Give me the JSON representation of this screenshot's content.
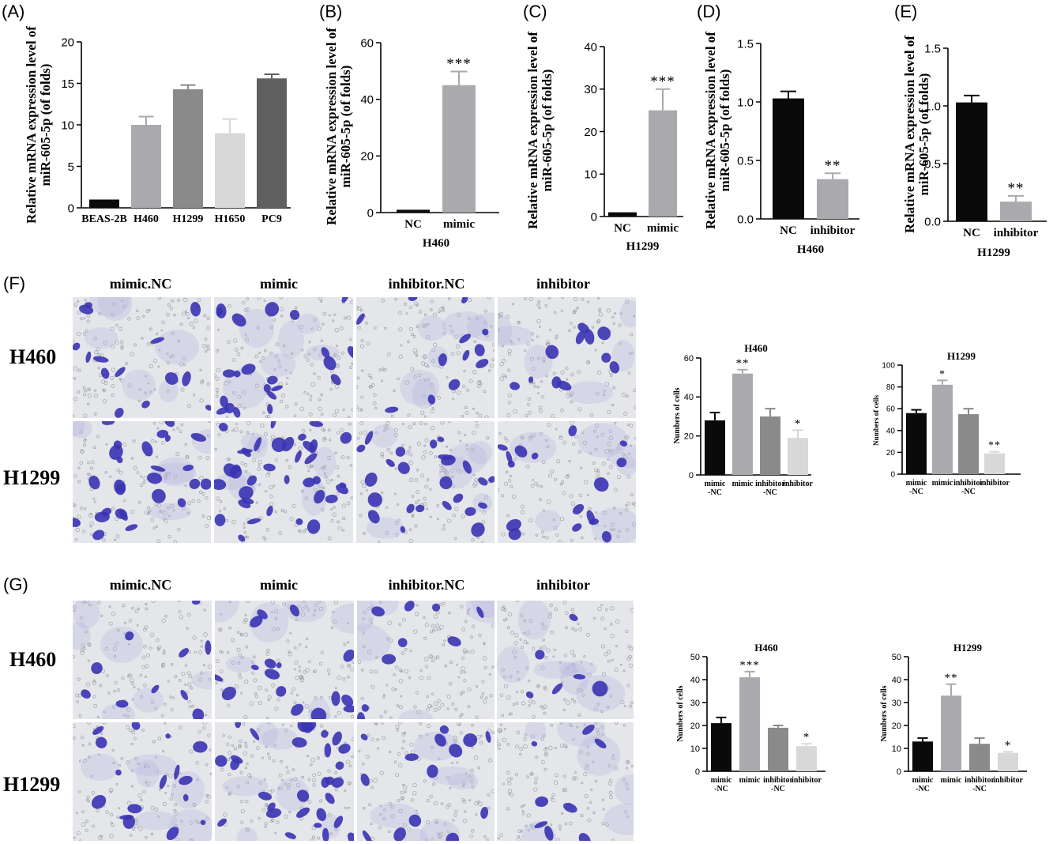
{
  "panels": {
    "F": {
      "letter": "(F)",
      "columns": [
        "mimic.NC",
        "mimic",
        "inhibitor.NC",
        "inhibitor"
      ],
      "rows": [
        "H460",
        "H1299"
      ]
    },
    "G": {
      "letter": "(G)",
      "columns": [
        "mimic.NC",
        "mimic",
        "inhibitor.NC",
        "inhibitor"
      ],
      "rows": [
        "H460",
        "H1299"
      ]
    }
  },
  "colors": {
    "black": "#0a0a0a",
    "grey_dark": "#5f5f5f",
    "grey_mid": "#8a8a8a",
    "grey_light": "#a9a9ae",
    "grey_pale": "#d8d8d8",
    "stain_bg": "#e4e6ea",
    "stain_cell": "#3a33b4"
  },
  "chart_data": [
    {
      "id": "A",
      "letter": "(A)",
      "type": "bar",
      "title": "",
      "xlabel": "",
      "ylabel": [
        "Relative mRNA expression level of",
        "miR-605-5p (of folds)"
      ],
      "categories": [
        "BEAS-2B",
        "H460",
        "H1299",
        "H1650",
        "PC9"
      ],
      "values": [
        1.0,
        10.0,
        14.3,
        9.0,
        15.6
      ],
      "errors": [
        0.0,
        1.0,
        0.5,
        1.7,
        0.5
      ],
      "significance": [
        "",
        "",
        "",
        "",
        ""
      ],
      "colors": [
        "#0a0a0a",
        "#a9a9ae",
        "#8a8a8a",
        "#d8d8d8",
        "#5f5f5f"
      ],
      "ylim": [
        0,
        20
      ],
      "yticks": [
        0,
        5,
        10,
        15,
        20
      ]
    },
    {
      "id": "B",
      "letter": "(B)",
      "type": "bar",
      "title": "",
      "xlabel": "H460",
      "ylabel": [
        "Relative mRNA expression level of",
        "miR-605-5p (of folds)"
      ],
      "categories": [
        "NC",
        "mimic"
      ],
      "values": [
        1.0,
        45.0
      ],
      "errors": [
        0.0,
        4.8
      ],
      "significance": [
        "",
        "***"
      ],
      "colors": [
        "#0a0a0a",
        "#a9a9ae"
      ],
      "ylim": [
        0,
        60
      ],
      "yticks": [
        0,
        20,
        40,
        60
      ]
    },
    {
      "id": "C",
      "letter": "(C)",
      "type": "bar",
      "title": "",
      "xlabel": "H1299",
      "ylabel": [
        "Relative mRNA expression level of",
        "miR-605-5p (of folds)"
      ],
      "categories": [
        "NC",
        "mimic"
      ],
      "values": [
        1.0,
        25.0
      ],
      "errors": [
        0.0,
        5.0
      ],
      "significance": [
        "",
        "***"
      ],
      "colors": [
        "#0a0a0a",
        "#a9a9ae"
      ],
      "ylim": [
        0,
        40
      ],
      "yticks": [
        0,
        10,
        20,
        30,
        40
      ]
    },
    {
      "id": "D",
      "letter": "(D)",
      "type": "bar",
      "title": "",
      "xlabel": "H460",
      "ylabel": [
        "Relative mRNA expression level of",
        "miR-605-5p (of folds)"
      ],
      "categories": [
        "NC",
        "inhibitor"
      ],
      "values": [
        1.03,
        0.34
      ],
      "errors": [
        0.06,
        0.05
      ],
      "significance": [
        "",
        "**"
      ],
      "colors": [
        "#0a0a0a",
        "#a9a9ae"
      ],
      "ylim": [
        0,
        1.5
      ],
      "yticks": [
        0.0,
        0.5,
        1.0,
        1.5
      ]
    },
    {
      "id": "E",
      "letter": "(E)",
      "type": "bar",
      "title": "",
      "xlabel": "H1299",
      "ylabel": [
        "Relative mRNA expression level of",
        "miR-605-5p (of folds)"
      ],
      "categories": [
        "NC",
        "inhibitor"
      ],
      "values": [
        1.03,
        0.17
      ],
      "errors": [
        0.06,
        0.05
      ],
      "significance": [
        "",
        "**"
      ],
      "colors": [
        "#0a0a0a",
        "#a9a9ae"
      ],
      "ylim": [
        0,
        1.5
      ],
      "yticks": [
        0.0,
        0.5,
        1.0,
        1.5
      ]
    },
    {
      "id": "F1",
      "letter": "",
      "type": "bar",
      "title": "H460",
      "xlabel": "",
      "ylabel": [
        "Numbers of cells"
      ],
      "categories": [
        [
          "mimic",
          "-NC"
        ],
        [
          "mimic"
        ],
        [
          "inhibitor",
          "-NC"
        ],
        [
          "inhibitor"
        ]
      ],
      "values": [
        28,
        52,
        30,
        19
      ],
      "errors": [
        4,
        2,
        4,
        4
      ],
      "significance": [
        "",
        "**",
        "",
        "*"
      ],
      "colors": [
        "#0a0a0a",
        "#a9a9ae",
        "#8a8a8a",
        "#d8d8d8"
      ],
      "ylim": [
        0,
        60
      ],
      "yticks": [
        0,
        20,
        40,
        60
      ]
    },
    {
      "id": "F2",
      "letter": "",
      "type": "bar",
      "title": "H1299",
      "xlabel": "",
      "ylabel": [
        "Numbers of cells"
      ],
      "categories": [
        [
          "mimic",
          "-NC"
        ],
        [
          "mimic"
        ],
        [
          "inhibitor",
          "-NC"
        ],
        [
          "inhibitor"
        ]
      ],
      "values": [
        56,
        82,
        55,
        19
      ],
      "errors": [
        3,
        4,
        5,
        1.5
      ],
      "significance": [
        "",
        "*",
        "",
        "**"
      ],
      "colors": [
        "#0a0a0a",
        "#a9a9ae",
        "#8a8a8a",
        "#d8d8d8"
      ],
      "ylim": [
        0,
        100
      ],
      "yticks": [
        0,
        20,
        40,
        60,
        80,
        100
      ]
    },
    {
      "id": "G1",
      "letter": "",
      "type": "bar",
      "title": "H460",
      "xlabel": "",
      "ylabel": [
        "Numbers of cells"
      ],
      "categories": [
        [
          "mimic",
          "-NC"
        ],
        [
          "mimic"
        ],
        [
          "inhibitor",
          "-NC"
        ],
        [
          "inhibitor"
        ]
      ],
      "values": [
        21,
        41,
        19,
        11
      ],
      "errors": [
        2.5,
        2.5,
        1,
        1
      ],
      "significance": [
        "",
        "***",
        "",
        "*"
      ],
      "colors": [
        "#0a0a0a",
        "#a9a9ae",
        "#8a8a8a",
        "#d8d8d8"
      ],
      "ylim": [
        0,
        50
      ],
      "yticks": [
        0,
        10,
        20,
        30,
        40,
        50
      ]
    },
    {
      "id": "G2",
      "letter": "",
      "type": "bar",
      "title": "H1299",
      "xlabel": "",
      "ylabel": [
        "Numbers of cells"
      ],
      "categories": [
        [
          "mimic",
          "-NC"
        ],
        [
          "mimic"
        ],
        [
          "inhibitor",
          "-NC"
        ],
        [
          "inhibitor"
        ]
      ],
      "values": [
        13,
        33,
        12,
        8
      ],
      "errors": [
        1.5,
        5,
        2.5,
        0.5
      ],
      "significance": [
        "",
        "**",
        "",
        "*"
      ],
      "colors": [
        "#0a0a0a",
        "#a9a9ae",
        "#8a8a8a",
        "#d8d8d8"
      ],
      "ylim": [
        0,
        50
      ],
      "yticks": [
        0,
        10,
        20,
        30,
        40,
        50
      ]
    }
  ]
}
